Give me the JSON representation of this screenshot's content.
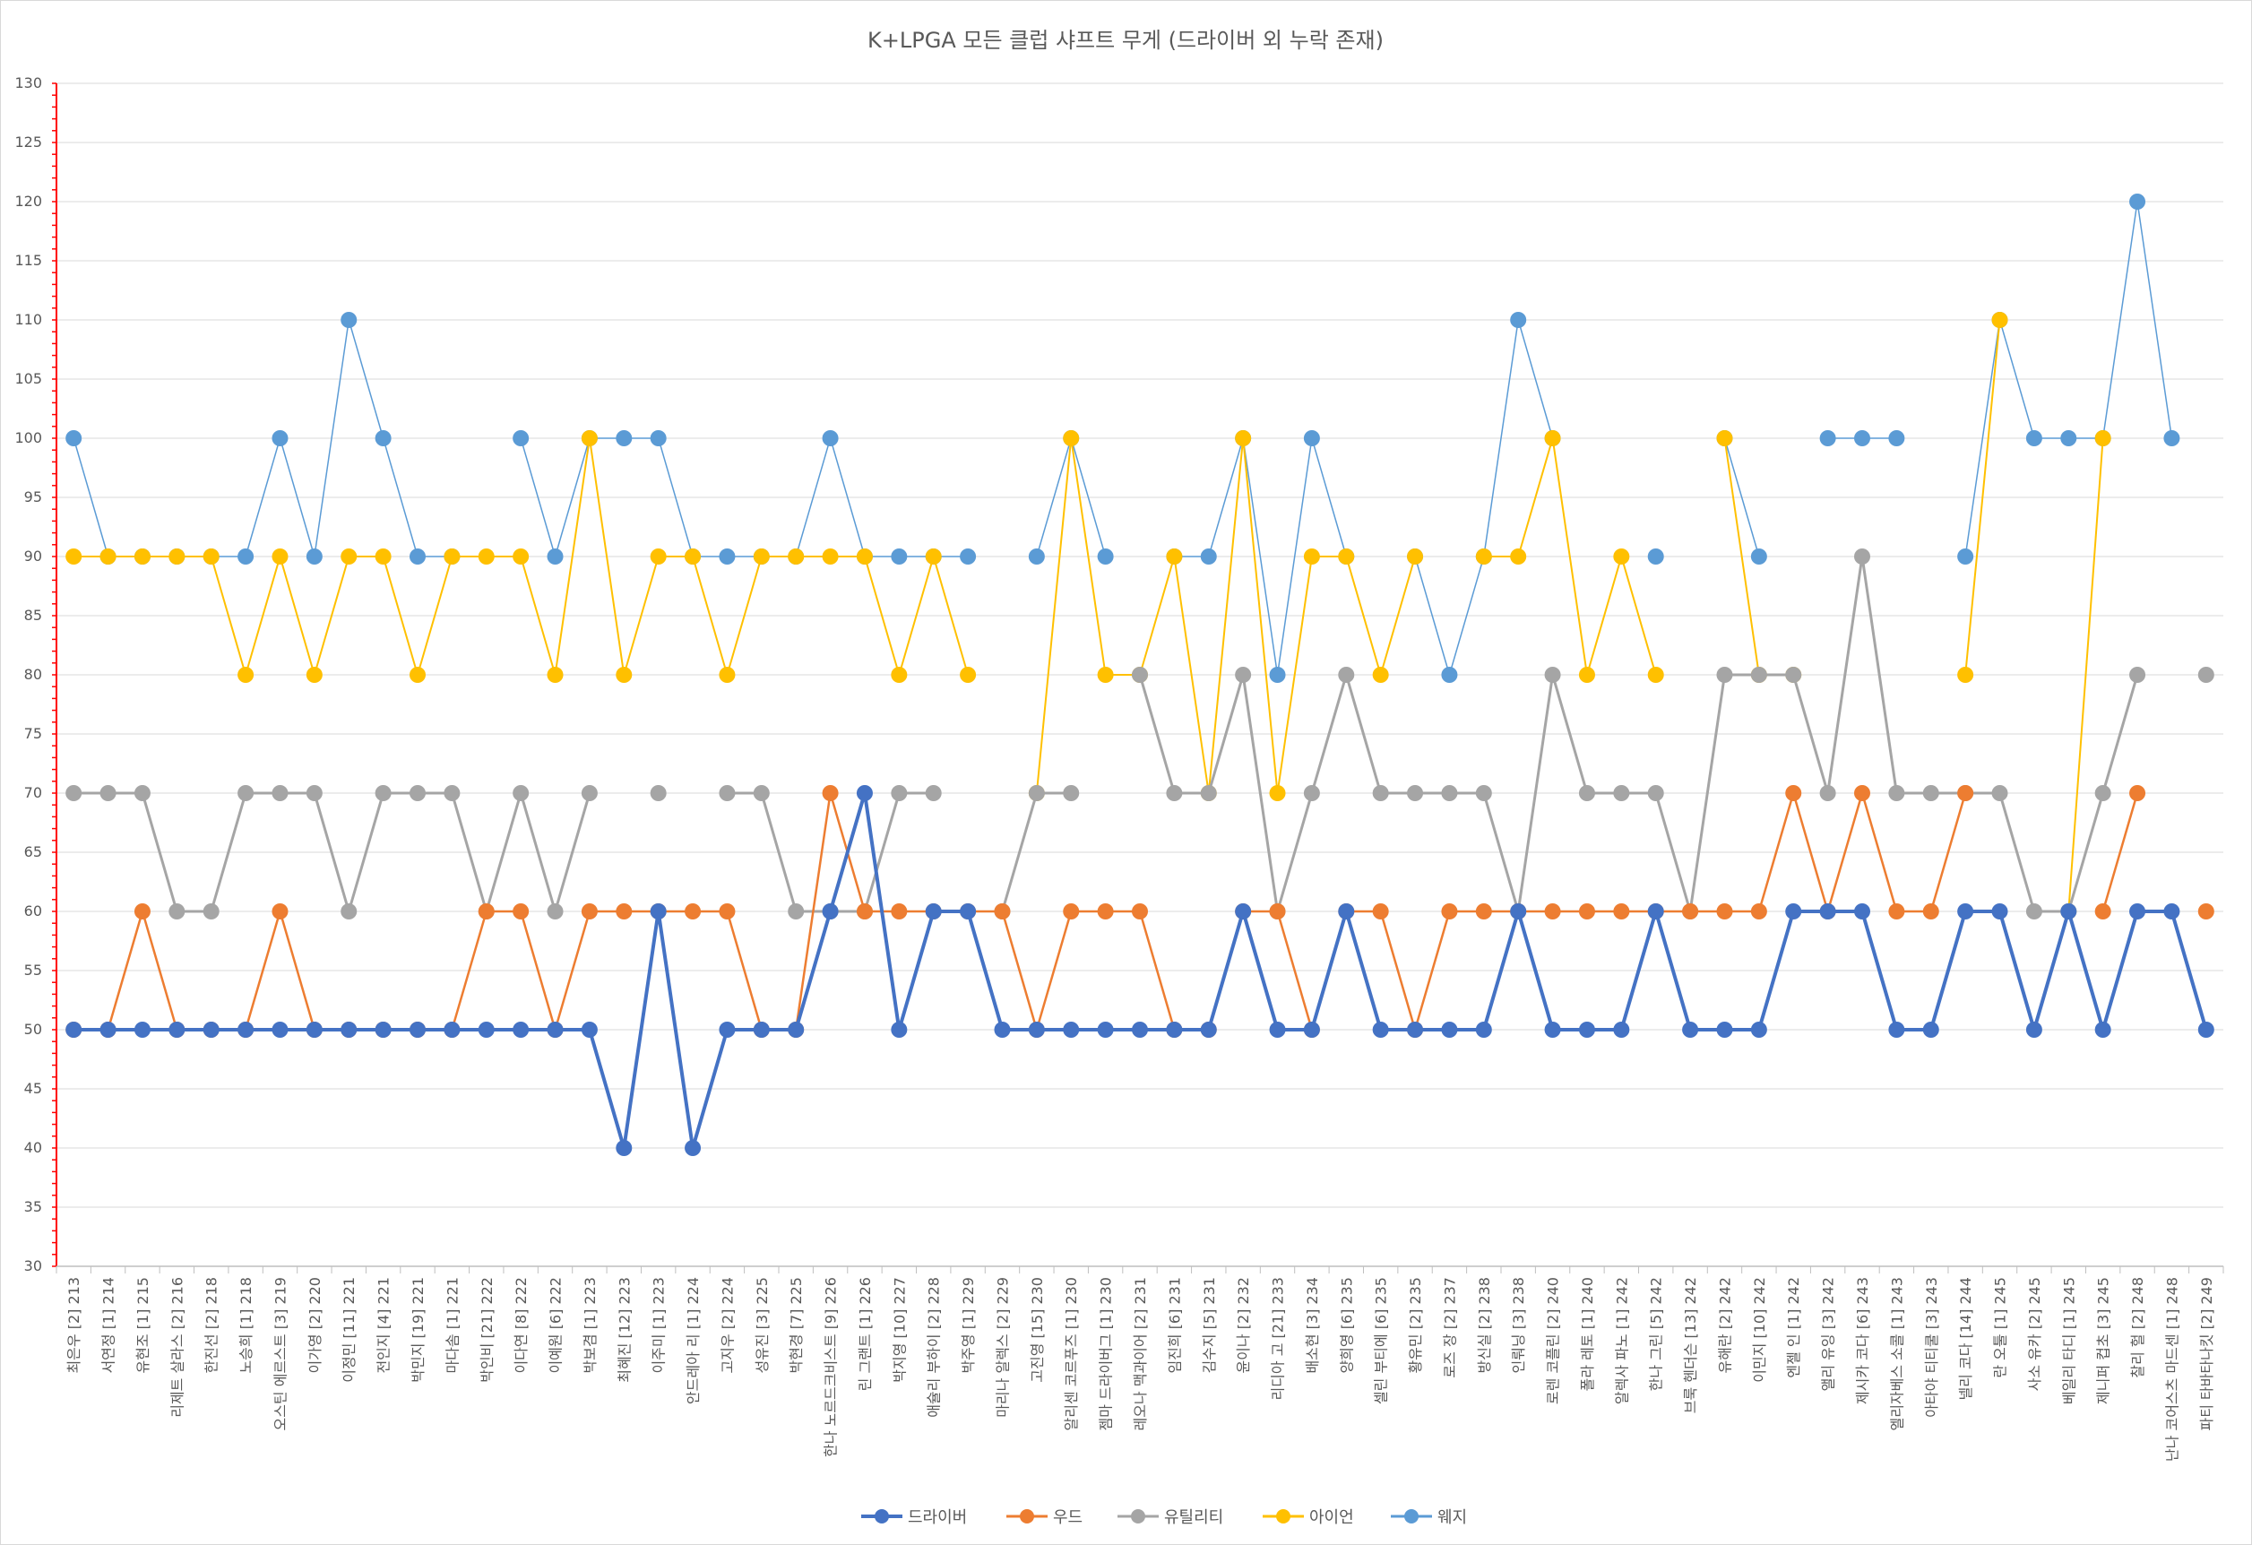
{
  "chart_data": {
    "type": "line",
    "title": "K+LPGA 모든 클럽 샤프트 무게 (드라이버 외 누락 존재)",
    "xlabel": "",
    "ylabel": "",
    "ylim": [
      30,
      130
    ],
    "yticks": [
      "30",
      "35",
      "40",
      "45",
      "50",
      "55",
      "60",
      "65",
      "70",
      "75",
      "80",
      "85",
      "90",
      "95",
      "100",
      "105",
      "110",
      "115",
      "120",
      "125",
      "130"
    ],
    "grid": true,
    "legend_position": "bottom",
    "categories": [
      "최은우 [2] 213",
      "서연정 [1] 214",
      "유현조 [1] 215",
      "리제트 살라스 [2] 216",
      "한진선 [2] 218",
      "노승희 [1] 218",
      "오스틴 에르스트 [3] 219",
      "이가영 [2] 220",
      "이정민 [11] 221",
      "전인지 [4] 221",
      "박민지 [19] 221",
      "마다솜 [1] 221",
      "박인비 [21] 222",
      "이다연 [8] 222",
      "이예원 [6] 222",
      "박보겸 [1] 223",
      "최혜진 [12] 223",
      "이주미 [1] 223",
      "안드레아 리 [1] 224",
      "고지우 [2] 224",
      "성유진 [3] 225",
      "박현경 [7] 225",
      "한나 노르드크비스트 [9] 226",
      "린 그랜트 [1] 226",
      "박지영 [10] 227",
      "애슐리 부하이 [2] 228",
      "박주영 [1] 229",
      "마리나 알렉스 [2] 229",
      "고진영 [15] 230",
      "알리센 코르푸즈 [1] 230",
      "젬마 드라이버그 [1] 230",
      "레오나 맥과이어 [2] 231",
      "임진희 [6] 231",
      "김수지 [5] 231",
      "윤이나 [2] 232",
      "리디아 고 [21] 233",
      "배소현 [3] 234",
      "양희영 [6] 235",
      "셀린 부티에 [6] 235",
      "황유민 [2] 235",
      "로즈 장 [2] 237",
      "방신실 [2] 238",
      "인뤄닝 [3] 238",
      "로렌 코플린 [2] 240",
      "폴라 레토 [1] 240",
      "알렉사 파노 [1] 242",
      "한나 그린 [5] 242",
      "브룩 헨더슨 [13] 242",
      "유해란 [2] 242",
      "이민지 [10] 242",
      "엔젤 인 [1] 242",
      "앨리 유잉 [3] 242",
      "제시카 코다 [6] 243",
      "엘리자베스 소콜 [1] 243",
      "아타야 티티쿨 [3] 243",
      "넬리 코다 [14] 244",
      "란 오툴 [1] 245",
      "사소 유카 [2] 245",
      "베일리 타디 [1] 245",
      "제니퍼 컵초 [3] 245",
      "찰리 헐 [2] 248",
      "난나 코어스츠 마드센 [1] 248",
      "파티 타바타나킷 [2] 249"
    ],
    "series": [
      {
        "name": "드라이버",
        "color": "#4472C4",
        "width": 4,
        "values": [
          50,
          50,
          50,
          50,
          50,
          50,
          50,
          50,
          50,
          50,
          50,
          50,
          50,
          50,
          50,
          50,
          40,
          60,
          40,
          50,
          50,
          50,
          60,
          70,
          50,
          60,
          60,
          50,
          50,
          50,
          50,
          50,
          50,
          50,
          60,
          50,
          50,
          60,
          50,
          50,
          50,
          50,
          60,
          50,
          50,
          50,
          60,
          50,
          50,
          50,
          60,
          60,
          60,
          50,
          50,
          60,
          60,
          50,
          60,
          50,
          60,
          60,
          50
        ]
      },
      {
        "name": "우드",
        "color": "#ED7D31",
        "width": 2.5,
        "values": [
          50,
          50,
          60,
          50,
          50,
          50,
          60,
          50,
          50,
          50,
          50,
          50,
          60,
          60,
          50,
          60,
          60,
          60,
          60,
          60,
          50,
          50,
          70,
          60,
          60,
          60,
          60,
          60,
          50,
          60,
          60,
          60,
          50,
          50,
          60,
          60,
          50,
          60,
          60,
          50,
          60,
          60,
          60,
          60,
          60,
          60,
          60,
          60,
          60,
          60,
          70,
          60,
          70,
          60,
          60,
          70,
          null,
          null,
          null,
          60,
          70,
          null,
          60
        ]
      },
      {
        "name": "유틸리티",
        "color": "#A5A5A5",
        "width": 3,
        "values": [
          70,
          70,
          70,
          60,
          60,
          70,
          70,
          70,
          60,
          70,
          70,
          70,
          60,
          70,
          60,
          70,
          null,
          70,
          null,
          70,
          70,
          60,
          60,
          60,
          70,
          70,
          null,
          60,
          70,
          70,
          null,
          80,
          70,
          70,
          80,
          60,
          70,
          80,
          70,
          70,
          70,
          70,
          60,
          80,
          70,
          70,
          70,
          60,
          80,
          80,
          80,
          70,
          90,
          70,
          70,
          70,
          70,
          60,
          60,
          70,
          80,
          null,
          80
        ]
      },
      {
        "name": "아이언",
        "color": "#FFC000",
        "width": 2,
        "values": [
          90,
          90,
          90,
          90,
          90,
          80,
          90,
          80,
          90,
          90,
          80,
          90,
          90,
          90,
          80,
          100,
          80,
          90,
          90,
          80,
          90,
          90,
          90,
          90,
          80,
          90,
          80,
          null,
          70,
          100,
          80,
          80,
          90,
          70,
          100,
          70,
          90,
          90,
          80,
          90,
          null,
          90,
          90,
          100,
          80,
          90,
          80,
          null,
          100,
          80,
          80,
          null,
          null,
          null,
          null,
          80,
          110,
          null,
          60,
          100,
          null,
          null,
          null
        ]
      },
      {
        "name": "웨지",
        "color": "#5B9BD5",
        "width": 1.5,
        "values": [
          100,
          90,
          90,
          90,
          90,
          90,
          100,
          90,
          110,
          100,
          90,
          90,
          null,
          100,
          90,
          100,
          100,
          100,
          90,
          90,
          90,
          90,
          100,
          90,
          90,
          90,
          90,
          null,
          90,
          100,
          90,
          null,
          90,
          90,
          100,
          80,
          100,
          90,
          null,
          90,
          80,
          90,
          110,
          100,
          null,
          null,
          90,
          null,
          100,
          90,
          null,
          100,
          100,
          100,
          null,
          90,
          110,
          100,
          100,
          100,
          120,
          100,
          null
        ]
      }
    ]
  }
}
